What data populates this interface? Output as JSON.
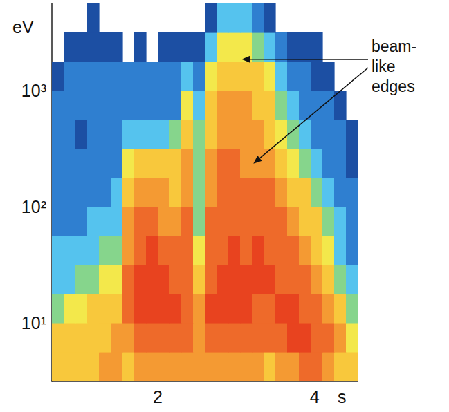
{
  "chart_data": {
    "type": "heatmap",
    "x_label": "s",
    "y_label": "eV",
    "log": "y",
    "grid": false,
    "xlim": [
      0.65,
      4.55
    ],
    "xticks": [
      2,
      4
    ],
    "ylim": [
      3.16,
      5623
    ],
    "yticks": [
      {
        "value": 10,
        "label": "10¹"
      },
      {
        "value": 100,
        "label": "10²"
      },
      {
        "value": 1000,
        "label": "10³"
      }
    ],
    "x_bins": [
      0.65,
      0.8,
      0.95,
      1.1,
      1.25,
      1.4,
      1.55,
      1.7,
      1.85,
      2.0,
      2.15,
      2.3,
      2.45,
      2.6,
      2.75,
      2.9,
      3.05,
      3.2,
      3.35,
      3.5,
      3.65,
      3.8,
      3.95,
      4.1,
      4.25,
      4.4,
      4.55
    ],
    "y_bins": [
      3.16,
      5.62,
      10,
      17.8,
      31.6,
      56.2,
      100,
      178,
      316,
      562,
      1000,
      1778,
      3162,
      5623
    ],
    "value_range": [
      1,
      9
    ],
    "cells": [
      [
        6,
        6,
        6,
        6,
        7,
        7,
        6,
        7,
        7,
        7,
        7,
        7,
        7,
        7,
        7,
        7,
        7,
        7,
        6,
        7,
        7,
        8,
        8,
        7,
        6,
        6
      ],
      [
        6,
        6,
        6,
        6,
        6,
        7,
        7,
        8,
        8,
        8,
        8,
        8,
        7,
        8,
        8,
        8,
        8,
        8,
        8,
        8,
        9,
        9,
        8,
        8,
        7,
        5
      ],
      [
        4,
        5,
        5,
        6,
        6,
        6,
        8,
        9,
        9,
        9,
        9,
        8,
        7,
        9,
        9,
        9,
        9,
        8,
        8,
        9,
        9,
        8,
        8,
        7,
        6,
        4
      ],
      [
        3,
        3,
        4,
        4,
        5,
        5,
        8,
        9,
        9,
        9,
        8,
        8,
        6,
        8,
        9,
        9,
        9,
        9,
        9,
        8,
        8,
        8,
        7,
        6,
        4,
        3
      ],
      [
        3,
        3,
        3,
        3,
        4,
        4,
        7,
        8,
        9,
        8,
        8,
        8,
        5,
        8,
        8,
        9,
        8,
        9,
        8,
        8,
        8,
        7,
        6,
        5,
        3,
        2
      ],
      [
        2,
        2,
        2,
        3,
        3,
        3,
        7,
        8,
        8,
        7,
        7,
        8,
        4,
        8,
        8,
        8,
        8,
        8,
        8,
        8,
        7,
        6,
        6,
        4,
        3,
        2
      ],
      [
        2,
        2,
        2,
        2,
        2,
        3,
        6,
        7,
        7,
        7,
        6,
        7,
        4,
        7,
        8,
        8,
        8,
        8,
        8,
        7,
        6,
        6,
        4,
        3,
        2,
        2
      ],
      [
        2,
        2,
        2,
        2,
        2,
        2,
        5,
        6,
        6,
        6,
        6,
        7,
        4,
        7,
        8,
        8,
        7,
        7,
        7,
        6,
        5,
        4,
        3,
        2,
        2,
        1
      ],
      [
        2,
        2,
        1,
        2,
        2,
        2,
        3,
        3,
        3,
        3,
        4,
        6,
        4,
        6,
        7,
        7,
        7,
        7,
        6,
        5,
        4,
        3,
        2,
        2,
        2,
        1
      ],
      [
        2,
        2,
        2,
        2,
        2,
        2,
        2,
        2,
        2,
        2,
        2,
        5,
        3,
        6,
        7,
        7,
        7,
        6,
        6,
        4,
        3,
        2,
        2,
        2,
        1,
        null
      ],
      [
        1,
        2,
        2,
        2,
        2,
        2,
        2,
        2,
        2,
        2,
        2,
        3,
        2,
        5,
        6,
        6,
        6,
        6,
        5,
        3,
        2,
        2,
        1,
        1,
        null,
        null
      ],
      [
        null,
        1,
        1,
        1,
        1,
        1,
        null,
        1,
        null,
        1,
        1,
        1,
        1,
        3,
        5,
        5,
        5,
        4,
        3,
        2,
        1,
        1,
        1,
        null,
        null,
        null
      ],
      [
        null,
        null,
        null,
        1,
        null,
        null,
        null,
        null,
        null,
        null,
        null,
        null,
        null,
        1,
        3,
        3,
        3,
        2,
        1,
        null,
        null,
        null,
        null,
        null,
        null,
        null
      ]
    ],
    "annotations": [
      {
        "text": "beam-like edges",
        "points": [
          [
            3.07,
            1860
          ],
          [
            3.22,
            235
          ]
        ]
      }
    ]
  }
}
